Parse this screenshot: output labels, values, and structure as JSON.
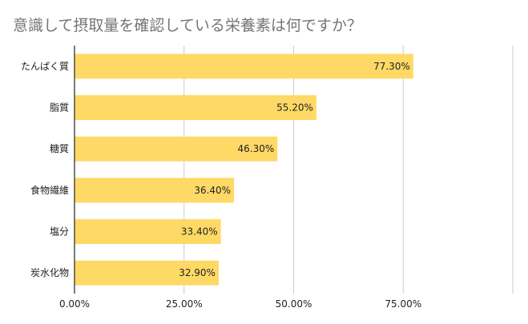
{
  "chart_data": {
    "type": "bar",
    "orientation": "horizontal",
    "title": "意識して摂取量を確認している栄養素は何ですか？",
    "categories": [
      "たんぱく質",
      "脂質",
      "糖質",
      "食物繊維",
      "塩分",
      "炭水化物"
    ],
    "values": [
      77.3,
      55.2,
      46.3,
      36.4,
      33.4,
      32.9
    ],
    "value_labels": [
      "77.30%",
      "55.20%",
      "46.30%",
      "36.40%",
      "33.40%",
      "32.90%"
    ],
    "x_ticks": [
      0,
      25,
      50,
      75,
      100
    ],
    "x_tick_labels": [
      "0.00%",
      "25.00%",
      "50.00%",
      "75.00%",
      ""
    ],
    "xlim": [
      0,
      100
    ],
    "xlabel": "",
    "ylabel": "",
    "grid": true,
    "bar_color": "#FFD966",
    "grid_color": "#CCCCCC",
    "axis_color": "#333333"
  }
}
